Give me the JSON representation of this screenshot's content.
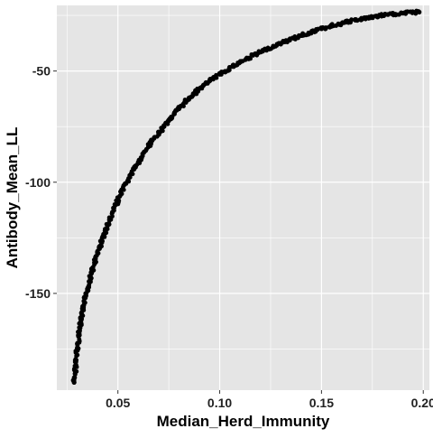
{
  "chart_data": {
    "type": "scatter",
    "title": "",
    "xlabel": "Median_Herd_Immunity",
    "ylabel": "Antibody_Mean_LL",
    "xlim": [
      0.02,
      0.203
    ],
    "ylim": [
      -193.5,
      -20.5
    ],
    "x_ticks": [
      0.05,
      0.1,
      0.15,
      0.2
    ],
    "x_tick_labels": [
      "0.05",
      "0.10",
      "0.15",
      "0.20"
    ],
    "y_ticks": [
      -50,
      -100,
      -150
    ],
    "y_tick_labels": [
      "-50",
      "-100",
      "-150"
    ],
    "grid": true,
    "legend": "none",
    "colors": {
      "panel_background": "#e5e5e5",
      "grid_line": "#ffffff",
      "point": "#000000",
      "axis_text": "#222222"
    },
    "series": [
      {
        "description": "dense point cloud lying along a smooth concave curve",
        "x": [
          0.0285,
          0.029,
          0.0295,
          0.03,
          0.031,
          0.032,
          0.033,
          0.034,
          0.035,
          0.037,
          0.04,
          0.043,
          0.046,
          0.05,
          0.055,
          0.06,
          0.065,
          0.07,
          0.075,
          0.08,
          0.085,
          0.09,
          0.095,
          0.1,
          0.11,
          0.12,
          0.13,
          0.14,
          0.15,
          0.16,
          0.17,
          0.18,
          0.19,
          0.198
        ],
        "y": [
          -190,
          -185,
          -180,
          -175,
          -168,
          -162,
          -157,
          -152,
          -148,
          -141,
          -132,
          -124,
          -117,
          -108,
          -99,
          -91,
          -84,
          -78,
          -72,
          -67,
          -62,
          -58,
          -54.5,
          -51.5,
          -46,
          -41.5,
          -37.5,
          -34,
          -31,
          -28.5,
          -26.5,
          -25,
          -24,
          -23.5
        ]
      }
    ]
  }
}
